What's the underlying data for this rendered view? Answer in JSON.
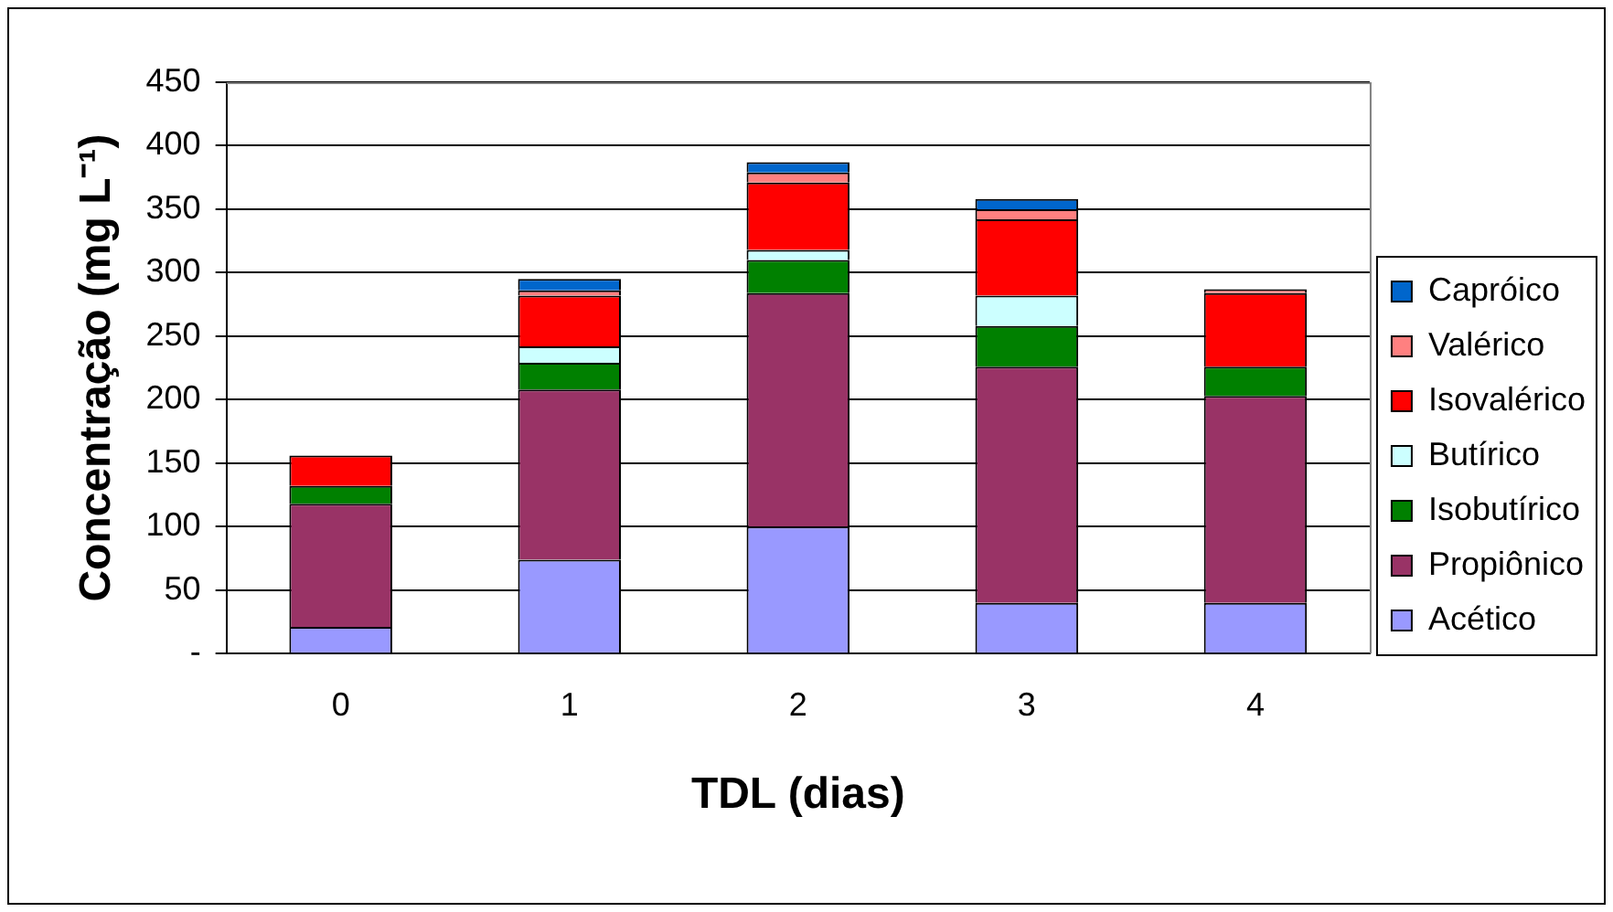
{
  "chart_data": {
    "type": "bar",
    "stacked": true,
    "xlabel": "TDL (dias)",
    "ylabel": "Concentração (mg L⁻¹)",
    "categories": [
      "0",
      "1",
      "2",
      "3",
      "4"
    ],
    "series": [
      {
        "name": "Acético",
        "color": "#9999ff",
        "values": [
          21,
          74,
          100,
          40,
          40
        ]
      },
      {
        "name": "Propiônico",
        "color": "#993366",
        "values": [
          97,
          134,
          184,
          186,
          163
        ]
      },
      {
        "name": "Isobutírico",
        "color": "#008000",
        "values": [
          14,
          21,
          26,
          32,
          23
        ]
      },
      {
        "name": "Butírico",
        "color": "#ccffff",
        "values": [
          0,
          13,
          8,
          24,
          0
        ]
      },
      {
        "name": "Isovalérico",
        "color": "#ff0000",
        "values": [
          24,
          40,
          53,
          60,
          58
        ]
      },
      {
        "name": "Valérico",
        "color": "#ff8080",
        "values": [
          0,
          4,
          8,
          8,
          3
        ]
      },
      {
        "name": "Capróico",
        "color": "#0066cc",
        "values": [
          0,
          9,
          8,
          8,
          0
        ]
      }
    ],
    "ylim": [
      0,
      450
    ],
    "yticks": [
      {
        "value": 0,
        "label": "-"
      },
      50,
      100,
      150,
      200,
      250,
      300,
      350,
      400,
      450
    ],
    "grid": "y",
    "legend": "right"
  }
}
